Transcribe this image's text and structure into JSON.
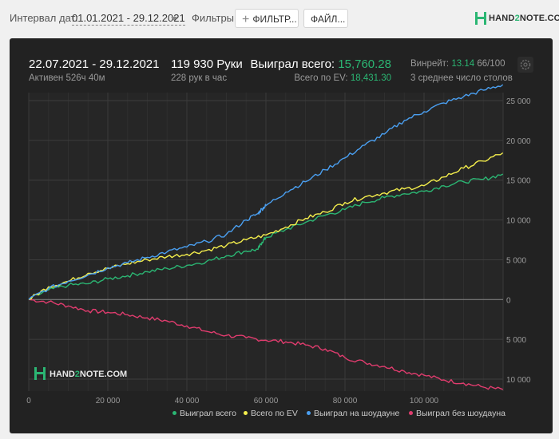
{
  "toolbar": {
    "date_label": "Интервал дат:",
    "date_range": "01.01.2021 - 29.12.2021",
    "filters_label": "Фильтры:",
    "filter_button": "ФИЛЬТР...",
    "file_button": "ФАЙЛ..."
  },
  "logo": {
    "text_a": "HAND",
    "text_b": "2",
    "text_c": "NOTE.COM"
  },
  "summary": {
    "period": "22.07.2021 - 29.12.2021",
    "active": "Активен 526ч 40м",
    "hands": "119 930 Руки",
    "hands_per_hour": "228 рук в час",
    "won_label": "Выиграл всего:",
    "won_value": "15,760.28",
    "ev_label": "Всего по EV:",
    "ev_value": "18,431.30",
    "winrate_label": "Винрейт:",
    "winrate_value": "13.14",
    "winrate_suffix": "66/100",
    "tables": "3 среднее число столов"
  },
  "colors": {
    "won": "#2bb673",
    "ev": "#f4ee4c",
    "showdown": "#4a9ff0",
    "nonshowdown": "#e03c6e"
  },
  "chart_data": {
    "type": "line",
    "xlim": [
      0,
      120000
    ],
    "ylim": [
      -11500,
      26000
    ],
    "x_ticks": [
      "0",
      "20 000",
      "40 000",
      "60 000",
      "80 000",
      "100 000"
    ],
    "y_tick_labels": [
      "25 000",
      "20 000",
      "15 000",
      "10 000",
      "5 000",
      "0",
      "5 000",
      "10 000"
    ],
    "y_tick_values": [
      25000,
      20000,
      15000,
      10000,
      5000,
      0,
      -5000,
      -10000
    ],
    "grid": true,
    "legend_position": "bottom-right",
    "series": [
      {
        "name": "Выиграл всего",
        "color_key": "won",
        "x": [
          0,
          5000,
          10000,
          15000,
          20000,
          25000,
          30000,
          35000,
          40000,
          45000,
          50000,
          55000,
          58000,
          59000,
          60000,
          65000,
          70000,
          75000,
          80000,
          85000,
          90000,
          95000,
          100000,
          105000,
          110000,
          115000,
          119930
        ],
        "y": [
          0,
          1200,
          1800,
          2000,
          2600,
          3000,
          3500,
          3900,
          4300,
          4800,
          5500,
          6100,
          6300,
          7200,
          7800,
          8800,
          9700,
          10600,
          11300,
          12200,
          12800,
          13300,
          13600,
          14300,
          14800,
          15100,
          15760
        ]
      },
      {
        "name": "Всего по EV",
        "color_key": "ev",
        "x": [
          0,
          5000,
          10000,
          15000,
          20000,
          25000,
          30000,
          35000,
          40000,
          45000,
          50000,
          55000,
          60000,
          65000,
          70000,
          75000,
          80000,
          85000,
          90000,
          95000,
          100000,
          105000,
          110000,
          115000,
          119930
        ],
        "y": [
          0,
          1600,
          2300,
          3300,
          3900,
          4500,
          5000,
          5400,
          5700,
          6200,
          6800,
          7500,
          8100,
          9100,
          10200,
          11000,
          12200,
          12900,
          13400,
          13900,
          14300,
          15400,
          16500,
          17400,
          18431
        ]
      },
      {
        "name": "Выиграл на шоудауне",
        "color_key": "showdown",
        "x": [
          0,
          5000,
          10000,
          15000,
          20000,
          25000,
          30000,
          35000,
          40000,
          45000,
          50000,
          55000,
          58000,
          59000,
          60000,
          65000,
          70000,
          75000,
          80000,
          85000,
          90000,
          95000,
          100000,
          105000,
          110000,
          115000,
          119930
        ],
        "y": [
          0,
          1400,
          2300,
          3100,
          4000,
          4600,
          5300,
          6000,
          6600,
          7300,
          8200,
          10000,
          10800,
          11400,
          11800,
          13500,
          14800,
          16300,
          17800,
          19400,
          20800,
          22500,
          23600,
          24700,
          25500,
          26300,
          27000
        ]
      },
      {
        "name": "Выиграл без шоудауна",
        "color_key": "nonshowdown",
        "x": [
          0,
          5000,
          10000,
          15000,
          20000,
          25000,
          30000,
          35000,
          40000,
          45000,
          50000,
          55000,
          60000,
          65000,
          70000,
          75000,
          80000,
          85000,
          90000,
          95000,
          100000,
          105000,
          110000,
          115000,
          119930
        ],
        "y": [
          0,
          -300,
          -800,
          -1400,
          -1600,
          -1900,
          -2300,
          -2700,
          -3300,
          -4000,
          -4500,
          -4800,
          -5100,
          -5300,
          -5700,
          -6200,
          -7300,
          -7900,
          -8400,
          -9000,
          -9500,
          -10100,
          -10500,
          -11000,
          -11300
        ]
      }
    ]
  },
  "watermark": {
    "text_a": "HAND",
    "text_b": "2",
    "text_c": "NOTE.COM"
  }
}
